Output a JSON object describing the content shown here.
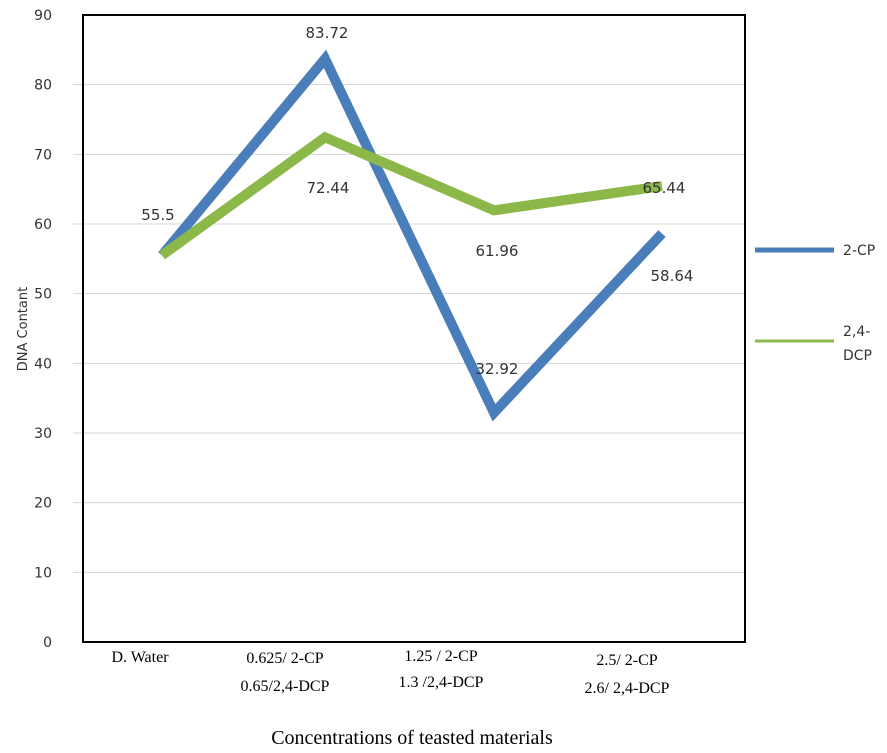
{
  "chart_data": {
    "type": "line",
    "categories": [
      [
        "D. Water"
      ],
      [
        "0.625/ 2-CP",
        "0.65/2,4-DCP"
      ],
      [
        "1.25 / 2-CP",
        "1.3 /2,4-DCP"
      ],
      [
        "2.5/ 2-CP",
        "2.6/ 2,4-DCP"
      ]
    ],
    "series": [
      {
        "name": "2-CP",
        "color": "#4a7ebb",
        "values": [
          55.5,
          83.72,
          32.92,
          58.64
        ]
      },
      {
        "name": "2,4-DCP",
        "color": "#8cb84a",
        "values": [
          55.5,
          72.44,
          61.96,
          65.44
        ]
      }
    ],
    "data_labels": [
      "55.5",
      "83.72",
      "72.44",
      "61.96",
      "32.92",
      "65.44",
      "58.64"
    ],
    "xlabel": "Concentrations of teasted materials",
    "ylabel": "DNA Contant",
    "ylim": [
      0,
      90
    ],
    "yticks": [
      0,
      10,
      20,
      30,
      40,
      50,
      60,
      70,
      80,
      90
    ],
    "grid": true,
    "legend_position": "right",
    "legend": [
      {
        "label": "2-CP",
        "color": "#4a7ebb"
      },
      {
        "label_lines": [
          "2,4-",
          "DCP"
        ],
        "color": "#8cb84a"
      }
    ]
  }
}
